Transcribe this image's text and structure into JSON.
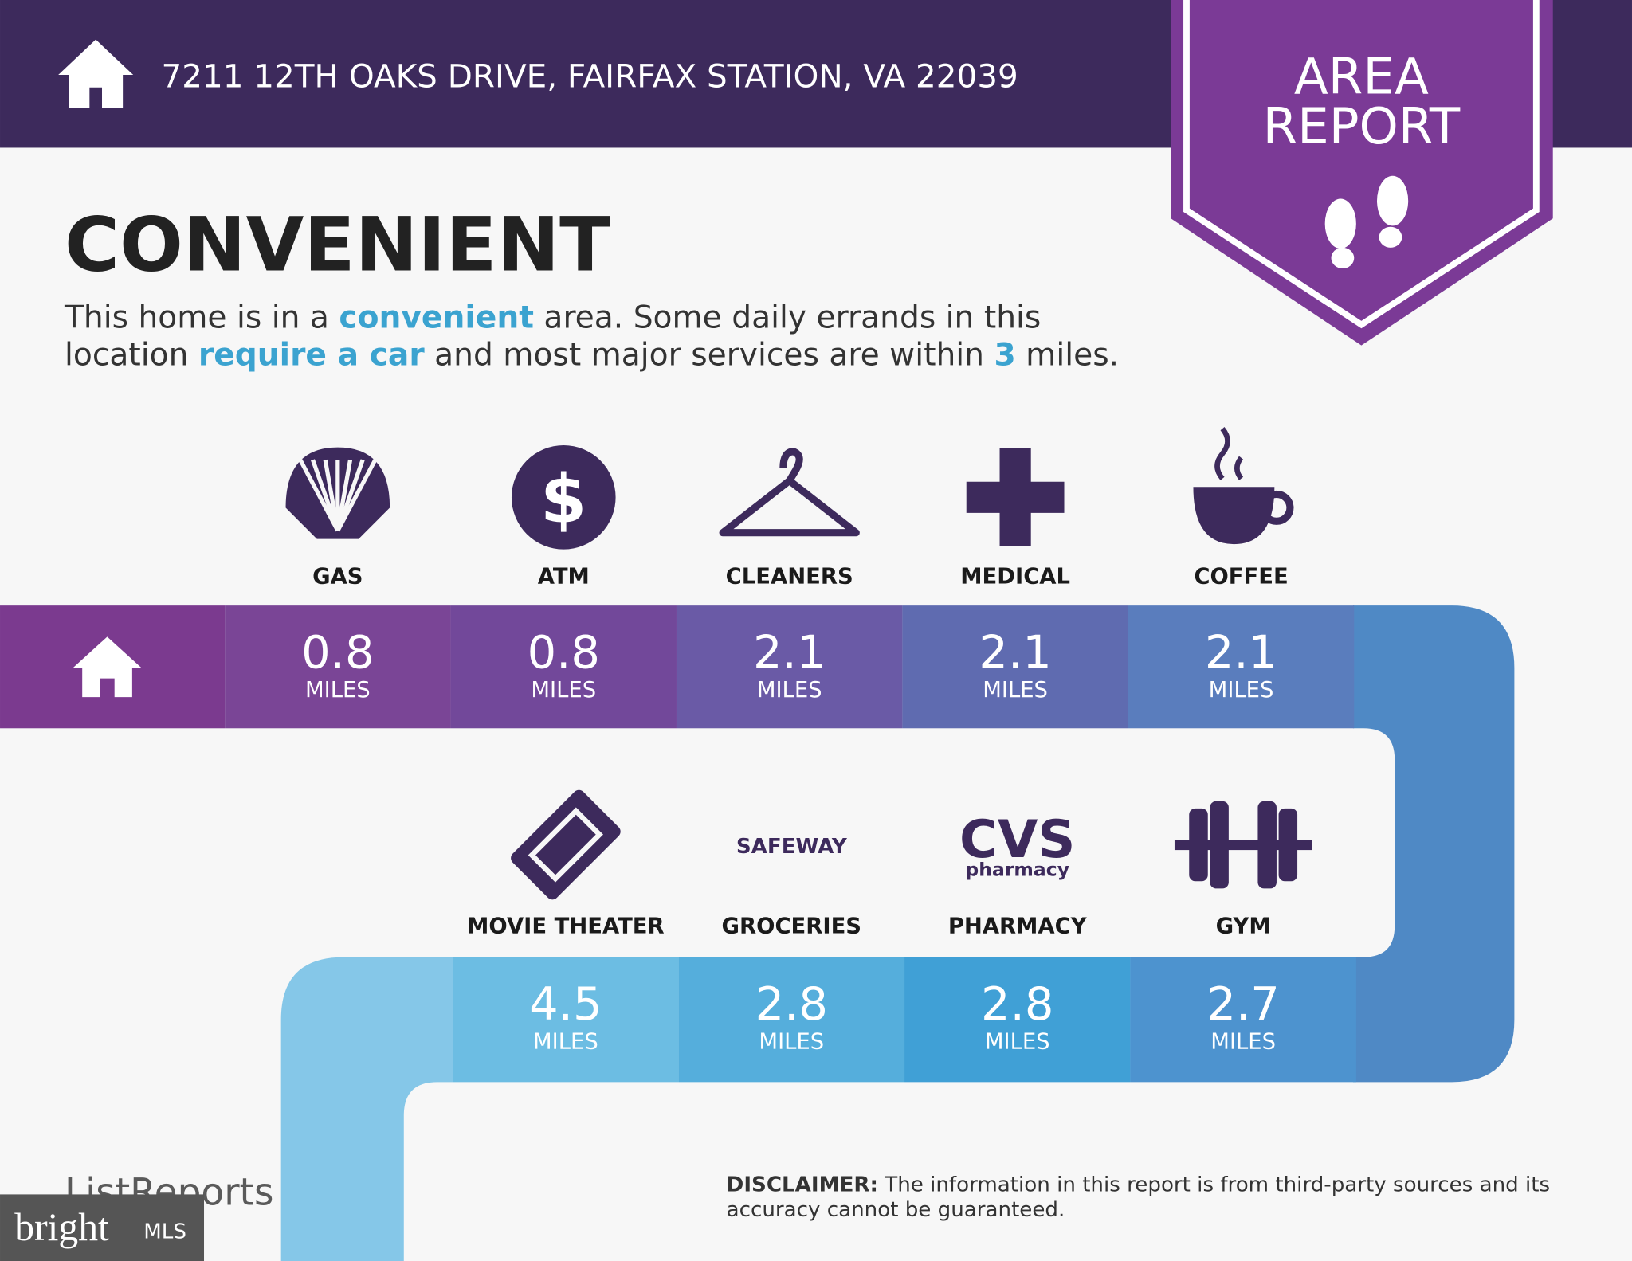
{
  "header": {
    "address": "7211 12TH OAKS DRIVE, FAIRFAX STATION, VA 22039"
  },
  "badge": {
    "lines": [
      "AREA",
      "REPORT"
    ]
  },
  "title": "CONVENIENT",
  "description": {
    "lines": [
      [
        "This home is in a ",
        "convenient",
        " area. Some daily errands in this"
      ],
      [
        "location ",
        "require a car",
        " and most major services are within ",
        "3",
        " miles."
      ]
    ]
  },
  "unit": "MILES",
  "rows": [
    {
      "items": [
        {
          "label": "GAS",
          "distance": 0.8,
          "color": "#7a4596"
        },
        {
          "label": "ATM",
          "distance": 0.8,
          "color": "#72489a"
        },
        {
          "label": "CLEANERS",
          "distance": 2.1,
          "color": "#6a5aa6"
        },
        {
          "label": "MEDICAL",
          "distance": 2.1,
          "color": "#5f6bb0"
        },
        {
          "label": "COFFEE",
          "distance": 2.1,
          "color": "#5a7dbd"
        }
      ]
    },
    {
      "items": [
        {
          "label": "MOVIE THEATER",
          "distance": 4.5,
          "color": "#6cbde3"
        },
        {
          "label": "GROCERIES",
          "distance": 2.8,
          "color": "#55aedc"
        },
        {
          "label": "PHARMACY",
          "distance": 2.8,
          "color": "#40a0d6"
        },
        {
          "label": "GYM",
          "distance": 2.7,
          "color": "#4d93cf"
        }
      ]
    }
  ],
  "logos": {
    "safeway": "SAFEWAY",
    "cvs": "CVS",
    "cvs_sub": "pharmacy"
  },
  "footer": {
    "brand": "ListReports",
    "mls_brand": "bright",
    "mls": "MLS",
    "disclaimer_label": "DISCLAIMER:",
    "disclaimer_lines": [
      " The information in this report is from third-party sources and its",
      "accuracy cannot be guaranteed."
    ]
  }
}
